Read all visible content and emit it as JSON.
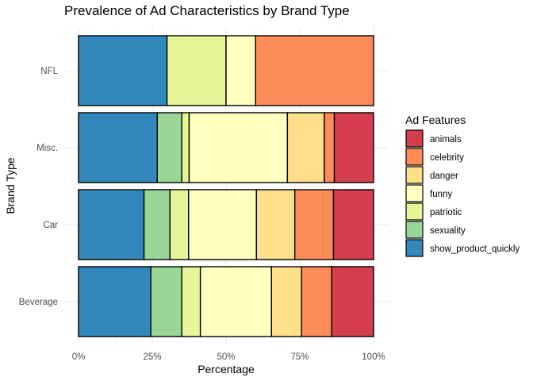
{
  "chart_data": {
    "type": "bar",
    "orientation": "horizontal",
    "stacked": true,
    "title": "Prevalence of Ad Characteristics by Brand Type",
    "xlabel": "Percentage",
    "ylabel": "Brand Type",
    "xlim": [
      0,
      1
    ],
    "x_ticks": [
      "0%",
      "25%",
      "50%",
      "75%",
      "100%"
    ],
    "categories": [
      "Beverage",
      "Car",
      "Misc.",
      "NFL"
    ],
    "grid": true,
    "legend": {
      "title": "Ad Features",
      "position": "right",
      "entries": [
        "animals",
        "celebrity",
        "danger",
        "funny",
        "patriotic",
        "sexuality",
        "show_product_quickly"
      ]
    },
    "stack_order_left_to_right": [
      "show_product_quickly",
      "sexuality",
      "patriotic",
      "funny",
      "danger",
      "celebrity",
      "animals"
    ],
    "series": [
      {
        "name": "show_product_quickly",
        "color": "#3288bd",
        "values": [
          0.245,
          0.222,
          0.267,
          0.3
        ]
      },
      {
        "name": "sexuality",
        "color": "#99d594",
        "values": [
          0.105,
          0.088,
          0.083,
          0.0
        ]
      },
      {
        "name": "patriotic",
        "color": "#e6f598",
        "values": [
          0.063,
          0.063,
          0.025,
          0.2
        ]
      },
      {
        "name": "funny",
        "color": "#ffffbf",
        "values": [
          0.241,
          0.23,
          0.333,
          0.1
        ]
      },
      {
        "name": "danger",
        "color": "#fee08b",
        "values": [
          0.102,
          0.13,
          0.125,
          0.0
        ]
      },
      {
        "name": "celebrity",
        "color": "#fc8d59",
        "values": [
          0.102,
          0.131,
          0.034,
          0.4
        ]
      },
      {
        "name": "animals",
        "color": "#d53e4f",
        "values": [
          0.142,
          0.136,
          0.133,
          0.0
        ]
      }
    ]
  }
}
